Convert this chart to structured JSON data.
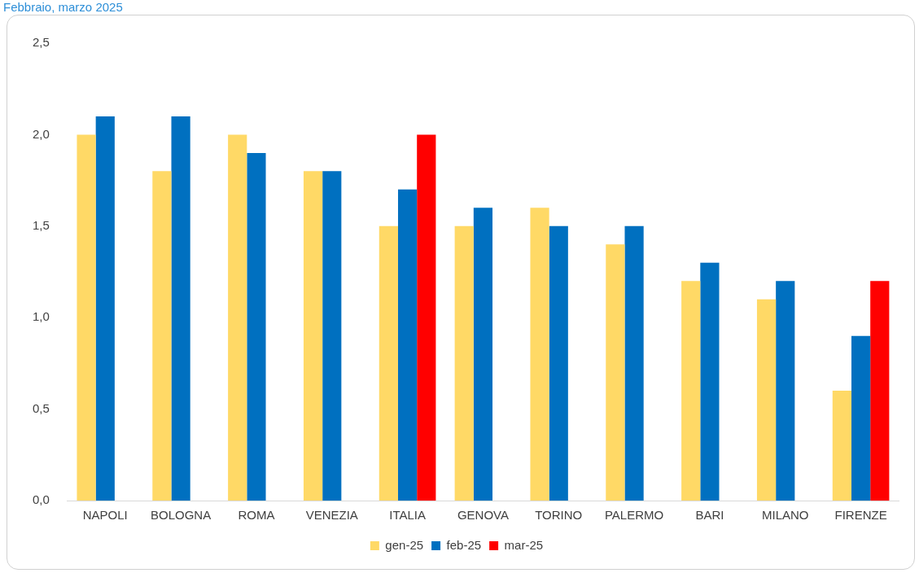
{
  "chart_data": {
    "type": "bar",
    "title": "Febbraio, marzo 2025",
    "categories": [
      "NAPOLI",
      "BOLOGNA",
      "ROMA",
      "VENEZIA",
      "ITALIA",
      "GENOVA",
      "TORINO",
      "PALERMO",
      "BARI",
      "MILANO",
      "FIRENZE"
    ],
    "series": [
      {
        "name": "gen-25",
        "color": "#ffd966",
        "values": [
          2.0,
          1.8,
          2.0,
          1.8,
          1.5,
          1.5,
          1.6,
          1.4,
          1.2,
          1.1,
          0.6
        ]
      },
      {
        "name": "feb-25",
        "color": "#0070c0",
        "values": [
          2.1,
          2.1,
          1.9,
          1.8,
          1.7,
          1.6,
          1.5,
          1.5,
          1.3,
          1.2,
          0.9
        ]
      },
      {
        "name": "mar-25",
        "color": "#ff0000",
        "values": [
          null,
          null,
          null,
          null,
          2.0,
          null,
          null,
          null,
          null,
          null,
          1.2
        ]
      }
    ],
    "ylim": [
      0,
      2.5
    ],
    "yticks": [
      {
        "value": 0,
        "label": "0,0"
      },
      {
        "value": 0.5,
        "label": "0,5"
      },
      {
        "value": 1,
        "label": "1,0"
      },
      {
        "value": 1.5,
        "label": "1,5"
      },
      {
        "value": 2,
        "label": "2,0"
      },
      {
        "value": 2.5,
        "label": "2,5"
      }
    ],
    "grid": false,
    "legend": "bottom"
  }
}
